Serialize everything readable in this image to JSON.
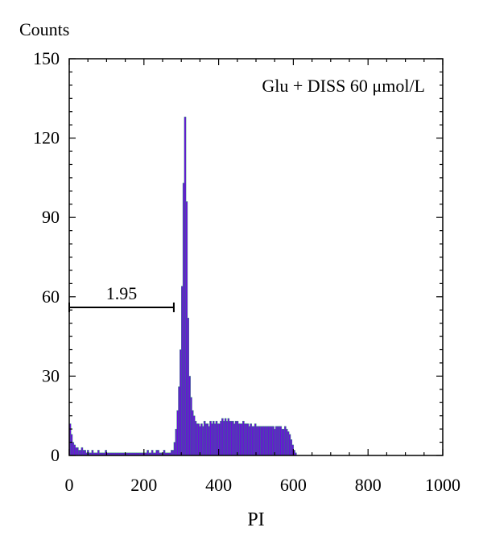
{
  "chart_data": {
    "type": "histogram",
    "ylabel": "Counts",
    "xlabel": "PI",
    "annotation": "Glu + DISS 60 μmol/L",
    "marker": {
      "label": "1.95",
      "x_start": 0,
      "x_end": 280
    },
    "xlim": [
      0,
      1000
    ],
    "ylim": [
      0,
      150
    ],
    "x_ticks": [
      0,
      200,
      400,
      600,
      800,
      1000
    ],
    "y_ticks": [
      0,
      30,
      60,
      90,
      120,
      150
    ],
    "colors": {
      "fill": "#6a0ddb",
      "outline": "#1fa060",
      "axis": "#000000"
    },
    "bin_width": 4,
    "series": [
      {
        "values": [
          12,
          8,
          5,
          4,
          3,
          3,
          2,
          2,
          3,
          2,
          2,
          1,
          2,
          1,
          1,
          2,
          1,
          1,
          1,
          2,
          1,
          1,
          1,
          1,
          2,
          1,
          1,
          1,
          1,
          1,
          1,
          1,
          1,
          1,
          1,
          1,
          1,
          1,
          1,
          1,
          1,
          1,
          1,
          1,
          1,
          1,
          1,
          1,
          1,
          1,
          1,
          1,
          2,
          1,
          1,
          2,
          1,
          1,
          2,
          2,
          1,
          1,
          1,
          2,
          1,
          1,
          1,
          1,
          2,
          2,
          5,
          10,
          17,
          26,
          40,
          64,
          103,
          128,
          96,
          52,
          30,
          22,
          17,
          15,
          13,
          12,
          12,
          11,
          12,
          11,
          13,
          12,
          12,
          11,
          13,
          12,
          13,
          12,
          13,
          12,
          12,
          13,
          14,
          13,
          14,
          13,
          14,
          13,
          13,
          13,
          12,
          13,
          13,
          12,
          12,
          12,
          13,
          12,
          12,
          12,
          11,
          12,
          11,
          11,
          12,
          11,
          11,
          11,
          11,
          11,
          11,
          11,
          11,
          11,
          11,
          11,
          11,
          10,
          11,
          11,
          11,
          11,
          10,
          10,
          11,
          10,
          9,
          8,
          6,
          4,
          2,
          1
        ]
      }
    ]
  }
}
